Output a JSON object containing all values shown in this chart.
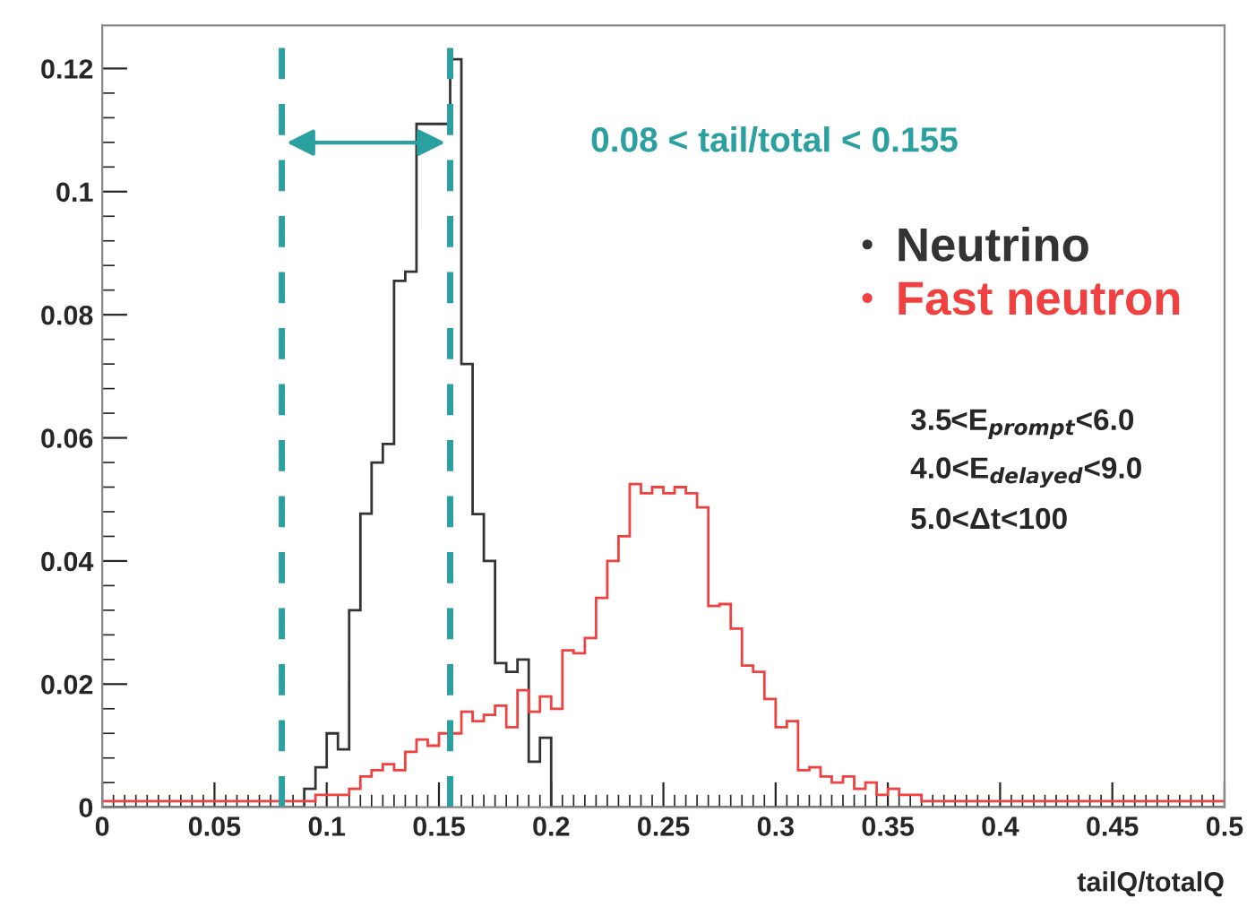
{
  "chart_data": {
    "type": "histogram",
    "xlabel": "tailQ/totalQ",
    "bins": [
      0,
      0.005,
      0.01,
      0.015,
      0.02,
      0.025,
      0.03,
      0.035,
      0.04,
      0.045,
      0.05,
      0.055,
      0.06,
      0.065,
      0.07,
      0.075,
      0.08,
      0.085,
      0.09,
      0.095,
      0.1,
      0.105,
      0.11,
      0.115,
      0.12,
      0.125,
      0.13,
      0.135,
      0.14,
      0.145,
      0.15,
      0.155,
      0.16,
      0.165,
      0.17,
      0.175,
      0.18,
      0.185,
      0.19,
      0.195,
      0.2,
      0.205,
      0.21,
      0.215,
      0.22,
      0.225,
      0.23,
      0.235,
      0.24,
      0.245,
      0.25,
      0.255,
      0.26,
      0.265,
      0.27,
      0.275,
      0.28,
      0.285,
      0.29,
      0.295,
      0.3,
      0.305,
      0.31,
      0.315,
      0.32,
      0.325,
      0.33,
      0.335,
      0.34,
      0.345,
      0.35,
      0.355,
      0.36,
      0.365,
      0.37,
      0.375,
      0.38,
      0.385,
      0.39,
      0.395,
      0.4,
      0.405,
      0.41,
      0.415,
      0.42,
      0.425,
      0.43,
      0.435,
      0.44,
      0.445,
      0.45,
      0.455,
      0.46,
      0.465,
      0.47,
      0.475,
      0.48,
      0.485,
      0.49,
      0.495,
      0.5
    ],
    "series": [
      {
        "name": "Neutrino",
        "color": "#333333",
        "values": [
          0,
          0,
          0,
          0,
          0,
          0,
          0,
          0,
          0,
          0,
          0,
          0,
          0,
          0,
          0,
          0,
          0,
          0,
          0.003,
          0.0065,
          0.012,
          0.0094,
          0.032,
          0.0477,
          0.056,
          0.059,
          0.0855,
          0.087,
          0.111,
          0.111,
          0.111,
          0.1215,
          0.072,
          0.0476,
          0.04,
          0.0234,
          0.022,
          0.024,
          0.0074,
          0.0113,
          0,
          0,
          0,
          0,
          0,
          0,
          0,
          0,
          0,
          0,
          0,
          0,
          0,
          0,
          0,
          0,
          0,
          0,
          0,
          0,
          0,
          0,
          0,
          0,
          0,
          0,
          0,
          0,
          0,
          0,
          0,
          0,
          0,
          0,
          0,
          0,
          0,
          0,
          0,
          0,
          0,
          0,
          0,
          0,
          0,
          0,
          0,
          0,
          0,
          0,
          0,
          0,
          0,
          0,
          0,
          0,
          0,
          0,
          0,
          0
        ]
      },
      {
        "name": "Fast neutron",
        "color": "#f04040",
        "values": [
          0.001,
          0.001,
          0.001,
          0.001,
          0.001,
          0.001,
          0.001,
          0.001,
          0.001,
          0.001,
          0.001,
          0.001,
          0.001,
          0.001,
          0.001,
          0.001,
          0.001,
          0.001,
          0.001,
          0.002,
          0.002,
          0.002,
          0.003,
          0.005,
          0.006,
          0.007,
          0.006,
          0.009,
          0.011,
          0.01,
          0.012,
          0.012,
          0.0155,
          0.014,
          0.015,
          0.0165,
          0.013,
          0.019,
          0.0155,
          0.018,
          0.016,
          0.0255,
          0.025,
          0.0275,
          0.034,
          0.04,
          0.044,
          0.0525,
          0.051,
          0.052,
          0.051,
          0.052,
          0.051,
          0.0487,
          0.0327,
          0.033,
          0.029,
          0.023,
          0.022,
          0.0176,
          0.013,
          0.014,
          0.006,
          0.0065,
          0.005,
          0.004,
          0.005,
          0.003,
          0.004,
          0.002,
          0.003,
          0.002,
          0.002,
          0.001,
          0.001,
          0.001,
          0.001,
          0.001,
          0.001,
          0.001,
          0.001,
          0.001,
          0.001,
          0.001,
          0.001,
          0.001,
          0.001,
          0.001,
          0.001,
          0.001,
          0.001,
          0.001,
          0.001,
          0.001,
          0.001,
          0.001,
          0.001,
          0.001,
          0.001,
          0.001
        ]
      }
    ],
    "xlim": [
      0,
      0.5
    ],
    "ylim": [
      0,
      0.127
    ],
    "xticks": [
      0,
      0.05,
      0.1,
      0.15,
      0.2,
      0.25,
      0.3,
      0.35,
      0.4,
      0.45,
      0.5
    ],
    "yticks": [
      0,
      0.02,
      0.04,
      0.06,
      0.08,
      0.1,
      0.12
    ],
    "ref_lines": [
      {
        "axis": "x",
        "value": 0.08,
        "color": "#2aa0a0",
        "line_style": "dashed"
      },
      {
        "axis": "x",
        "value": 0.155,
        "color": "#2aa0a0",
        "line_style": "dashed"
      }
    ],
    "annotations": [
      "0.08 < tail/total < 0.155",
      "3.5<E$_{prompt}$<6.0",
      "4.0<E$_{delayed}$<9.0",
      "5.0<Δt<100"
    ],
    "legend": "right",
    "grid": false
  }
}
